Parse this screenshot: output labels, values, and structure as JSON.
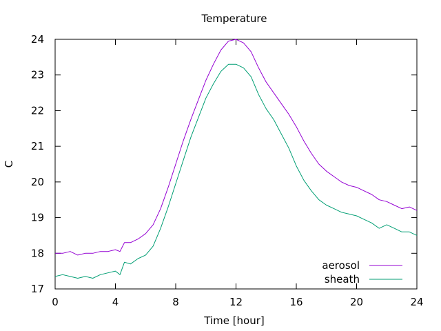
{
  "chart_data": {
    "type": "line",
    "title": "Temperature",
    "xlabel": "Time [hour]",
    "ylabel": "C",
    "xlim": [
      0,
      24
    ],
    "ylim": [
      17,
      24
    ],
    "xticks": [
      0,
      4,
      8,
      12,
      16,
      20,
      24
    ],
    "yticks": [
      17,
      18,
      19,
      20,
      21,
      22,
      23,
      24
    ],
    "grid": false,
    "legend_position": "bottom-right",
    "series": [
      {
        "name": "aerosol",
        "color": "#9400d3",
        "x": [
          0,
          0.5,
          1,
          1.5,
          2,
          2.5,
          3,
          3.5,
          4,
          4.3,
          4.6,
          5,
          5.5,
          6,
          6.5,
          7,
          7.5,
          8,
          8.5,
          9,
          9.5,
          10,
          10.5,
          11,
          11.5,
          12,
          12.5,
          13,
          13.5,
          14,
          14.5,
          15,
          15.5,
          16,
          16.5,
          17,
          17.5,
          18,
          18.5,
          19,
          19.5,
          20,
          20.5,
          21,
          21.5,
          22,
          22.5,
          23,
          23.5,
          24
        ],
        "y": [
          18.0,
          18.0,
          18.05,
          17.95,
          18.0,
          18.0,
          18.05,
          18.05,
          18.1,
          18.05,
          18.3,
          18.3,
          18.4,
          18.55,
          18.8,
          19.25,
          19.85,
          20.5,
          21.15,
          21.75,
          22.3,
          22.85,
          23.3,
          23.7,
          23.95,
          24.0,
          23.9,
          23.65,
          23.2,
          22.8,
          22.5,
          22.2,
          21.9,
          21.55,
          21.15,
          20.8,
          20.5,
          20.3,
          20.15,
          20.0,
          19.9,
          19.85,
          19.75,
          19.65,
          19.5,
          19.45,
          19.35,
          19.25,
          19.3,
          19.2
        ]
      },
      {
        "name": "sheath",
        "color": "#009e73",
        "x": [
          0,
          0.5,
          1,
          1.5,
          2,
          2.5,
          3,
          3.5,
          4,
          4.3,
          4.6,
          5,
          5.5,
          6,
          6.5,
          7,
          7.5,
          8,
          8.5,
          9,
          9.5,
          10,
          10.5,
          11,
          11.5,
          12,
          12.5,
          13,
          13.5,
          14,
          14.5,
          15,
          15.5,
          16,
          16.5,
          17,
          17.5,
          18,
          18.5,
          19,
          19.5,
          20,
          20.5,
          21,
          21.5,
          22,
          22.5,
          23,
          23.5,
          24
        ],
        "y": [
          17.35,
          17.4,
          17.35,
          17.3,
          17.35,
          17.3,
          17.4,
          17.45,
          17.5,
          17.4,
          17.75,
          17.7,
          17.85,
          17.95,
          18.2,
          18.7,
          19.3,
          19.95,
          20.6,
          21.25,
          21.8,
          22.35,
          22.75,
          23.1,
          23.3,
          23.3,
          23.2,
          22.95,
          22.45,
          22.05,
          21.75,
          21.35,
          20.95,
          20.45,
          20.05,
          19.75,
          19.5,
          19.35,
          19.25,
          19.15,
          19.1,
          19.05,
          18.95,
          18.85,
          18.7,
          18.8,
          18.7,
          18.6,
          18.6,
          18.5
        ]
      }
    ]
  }
}
